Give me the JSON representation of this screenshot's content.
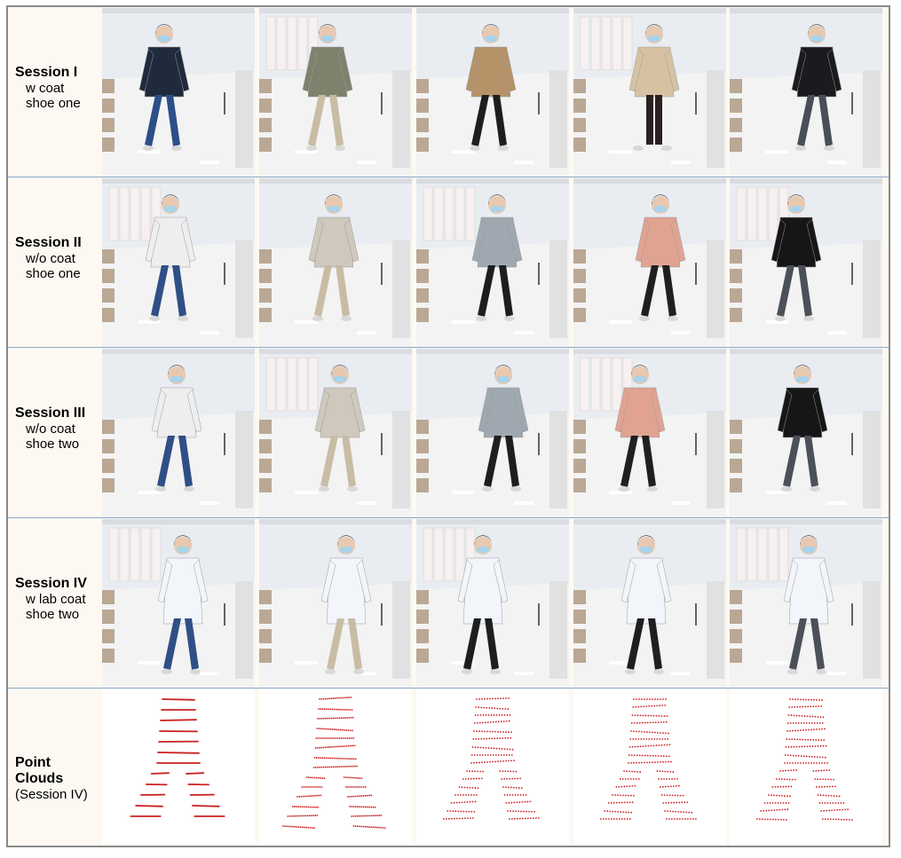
{
  "rows": [
    {
      "title": "Session I",
      "lines": [
        "w coat",
        "shoe one"
      ],
      "kind": "photo",
      "subjects": [
        {
          "top": "#1f2a3d",
          "bottom": "#2c4f88",
          "hair": "#151515",
          "legs": "apart"
        },
        {
          "top": "#7e826c",
          "bottom": "#c8bca4",
          "hair": "#151515",
          "legs": "apart"
        },
        {
          "top": "#b59268",
          "bottom": "#1e1e1e",
          "hair": "#151515",
          "legs": "apart"
        },
        {
          "top": "#d6c2a2",
          "bottom": "#2b2020",
          "hair": "#151515",
          "legs": "together"
        },
        {
          "top": "#1b1b1f",
          "bottom": "#4a4e58",
          "hair": "#151515",
          "legs": "apart"
        }
      ]
    },
    {
      "title": "Session II",
      "lines": [
        "w/o coat",
        "shoe one"
      ],
      "kind": "photo",
      "subjects": [
        {
          "top": "#eeeeee",
          "bottom": "#2f4f86",
          "hair": "#151515",
          "legs": "apart"
        },
        {
          "top": "#cfc8bc",
          "bottom": "#c8bca4",
          "hair": "#151515",
          "legs": "apart"
        },
        {
          "top": "#9fa8b0",
          "bottom": "#1e1e1e",
          "hair": "#151515",
          "legs": "apart"
        },
        {
          "top": "#e0a392",
          "bottom": "#1f1f22",
          "hair": "#151515",
          "legs": "apart"
        },
        {
          "top": "#161616",
          "bottom": "#4c5058",
          "hair": "#151515",
          "legs": "apart"
        }
      ]
    },
    {
      "title": "Session III",
      "lines": [
        "w/o coat",
        "shoe two"
      ],
      "kind": "photo",
      "subjects": [
        {
          "top": "#eeeeee",
          "bottom": "#2f4f86",
          "hair": "#151515",
          "legs": "apart"
        },
        {
          "top": "#cfc8bc",
          "bottom": "#c8bca4",
          "hair": "#151515",
          "legs": "apart"
        },
        {
          "top": "#9fa8b0",
          "bottom": "#1e1e1e",
          "hair": "#151515",
          "legs": "apart"
        },
        {
          "top": "#e0a392",
          "bottom": "#1f1f22",
          "hair": "#151515",
          "legs": "apart"
        },
        {
          "top": "#161616",
          "bottom": "#4c5058",
          "hair": "#151515",
          "legs": "apart"
        }
      ]
    },
    {
      "title": "Session IV",
      "lines": [
        "w lab coat",
        "shoe two"
      ],
      "kind": "photo",
      "subjects": [
        {
          "top": "#f2f5fa",
          "bottom": "#2f4f86",
          "hair": "#151515",
          "legs": "apart"
        },
        {
          "top": "#f2f5fa",
          "bottom": "#c8bca4",
          "hair": "#151515",
          "legs": "apart"
        },
        {
          "top": "#f2f5fa",
          "bottom": "#1e1e1e",
          "hair": "#151515",
          "legs": "apart"
        },
        {
          "top": "#f2f5fa",
          "bottom": "#1f1f22",
          "hair": "#151515",
          "legs": "apart"
        },
        {
          "top": "#f2f5fa",
          "bottom": "#4c5058",
          "hair": "#151515",
          "legs": "apart"
        }
      ]
    },
    {
      "title": "Point Clouds",
      "lines": [
        "(Session IV)"
      ],
      "kind": "cloud",
      "subjects": [
        {
          "density": "dense",
          "color": "#cc1f1f"
        },
        {
          "density": "medium",
          "color": "#cc1f1f"
        },
        {
          "density": "sparse",
          "color": "#cc1f1f"
        },
        {
          "density": "sparse",
          "color": "#cc1f1f"
        },
        {
          "density": "sparse",
          "color": "#cc1f1f"
        }
      ]
    }
  ],
  "colors": {
    "frame_border": "#8a8a8a",
    "row_separator": "#8aa6c8",
    "label_background": "#fdf9f2",
    "wall": "#e9edf2",
    "floor": "#f3f3f3",
    "cloud_points": "#cc1f1f"
  }
}
